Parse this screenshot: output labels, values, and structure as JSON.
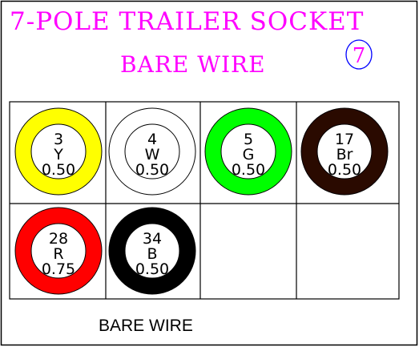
{
  "title": "7-POLE TRAILER SOCKET",
  "subtitle": "BARE WIRE",
  "badge": "7",
  "footer": "BARE WIRE",
  "colors": {
    "title": "#ff00ff",
    "badge_ring": "#0000ff",
    "grid": "#000000"
  },
  "wires": [
    {
      "pin": "3",
      "code": "Y",
      "size": "0.50",
      "color": "#ffff00"
    },
    {
      "pin": "4",
      "code": "W",
      "size": "0.50",
      "color": "#ffffff"
    },
    {
      "pin": "5",
      "code": "G",
      "size": "0.50",
      "color": "#00ff00"
    },
    {
      "pin": "17",
      "code": "Br",
      "size": "0.50",
      "color": "#2a0a00"
    },
    {
      "pin": "28",
      "code": "R",
      "size": "0.75",
      "color": "#ff0000"
    },
    {
      "pin": "34",
      "code": "B",
      "size": "0.50",
      "color": "#000000"
    }
  ]
}
